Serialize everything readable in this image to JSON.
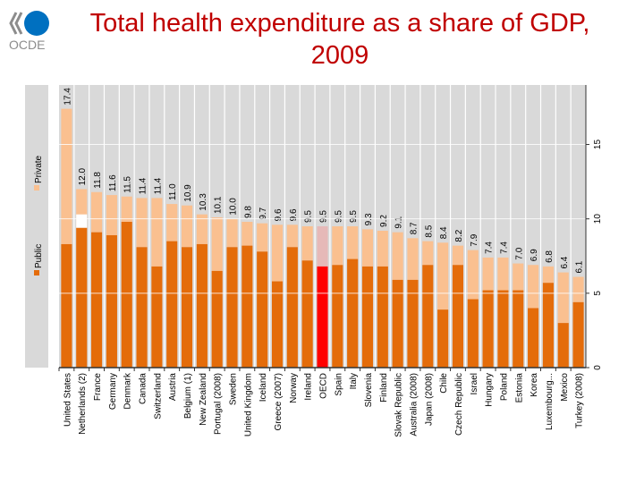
{
  "header": {
    "title": "Total health expenditure as a share of GDP, 2009",
    "logo_text": "OCDE"
  },
  "chart_data": {
    "type": "bar",
    "stacked": true,
    "orientation": "vertical (rotated labels)",
    "title": "Total health expenditure as a share of GDP, 2009",
    "ylim": [
      0,
      19
    ],
    "yticks": [
      0,
      5,
      10,
      15
    ],
    "y_axis_side": "right",
    "grid": true,
    "legend_placement": "left",
    "colors": {
      "Public": "#e46c0a",
      "Private": "#fac090",
      "highlight_public": "#ff0000",
      "highlight_private": "#e6b9b8",
      "background": "#d9d9d9"
    },
    "categories": [
      "United States",
      "Netherlands (2)",
      "France",
      "Germany",
      "Denmark",
      "Canada",
      "Switzerland",
      "Austria",
      "Belgium (1)",
      "New Zealand",
      "Portugal (2008)",
      "Sweden",
      "United Kingdom",
      "Iceland",
      "Greece (2007)",
      "Norway",
      "Ireland",
      "OECD",
      "Spain",
      "Italy",
      "Slovenia",
      "Finland",
      "Slovak Republic",
      "Australia (2008)",
      "Japan (2008)",
      "Chile",
      "Czech Republic",
      "Israel",
      "Hungary",
      "Poland",
      "Estonia",
      "Korea",
      "Luxembourg...",
      "Mexico",
      "Turkey (2008)"
    ],
    "totals": [
      17.4,
      12.0,
      11.8,
      11.6,
      11.5,
      11.4,
      11.4,
      11.0,
      10.9,
      10.3,
      10.1,
      10.0,
      9.8,
      9.7,
      9.6,
      9.6,
      9.5,
      9.5,
      9.5,
      9.5,
      9.3,
      9.2,
      9.1,
      8.7,
      8.5,
      8.4,
      8.2,
      7.9,
      7.4,
      7.4,
      7.0,
      6.9,
      6.8,
      6.4,
      6.1
    ],
    "total_labels": [
      "17.4",
      "12.0",
      "11.8",
      "11.6",
      "11.5",
      "11.4",
      "11.4",
      "11.0",
      "10.9",
      "10.3",
      "10.1",
      "10.0",
      "9.8",
      "9.7",
      "9.6",
      "9.6",
      "9.5",
      "9.5",
      "9.5",
      "9.5",
      "9.3",
      "9.2",
      "9.1",
      "8.7",
      "8.5",
      "8.4",
      "8.2",
      "7.9",
      "7.4",
      "7.4",
      "7.0",
      "6.9",
      "6.8",
      "6.4",
      "6.1"
    ],
    "series": [
      {
        "name": "Public",
        "values": [
          8.3,
          9.4,
          9.1,
          8.9,
          9.8,
          8.1,
          6.8,
          8.5,
          8.1,
          8.3,
          6.5,
          8.1,
          8.2,
          7.8,
          5.8,
          8.1,
          7.2,
          6.8,
          6.9,
          7.3,
          6.8,
          6.8,
          5.9,
          5.9,
          6.9,
          3.9,
          6.9,
          4.6,
          5.2,
          5.2,
          5.2,
          4.0,
          5.7,
          3.0,
          4.4
        ]
      },
      {
        "name": "Private",
        "values": [
          9.1,
          2.6,
          2.7,
          2.7,
          1.7,
          3.3,
          4.6,
          2.5,
          2.8,
          2.0,
          3.6,
          1.9,
          1.6,
          1.9,
          3.8,
          1.5,
          2.3,
          2.7,
          2.6,
          2.2,
          2.5,
          2.4,
          3.2,
          2.8,
          1.6,
          4.5,
          1.3,
          3.3,
          2.2,
          2.2,
          1.8,
          2.9,
          1.1,
          3.4,
          1.7
        ]
      }
    ],
    "highlight_category": "OECD",
    "unallocated_segment": {
      "category": "Netherlands (2)",
      "range": [
        9.4,
        10.3
      ],
      "color": "#ffffff"
    },
    "legend": [
      "Public",
      "Private"
    ]
  }
}
